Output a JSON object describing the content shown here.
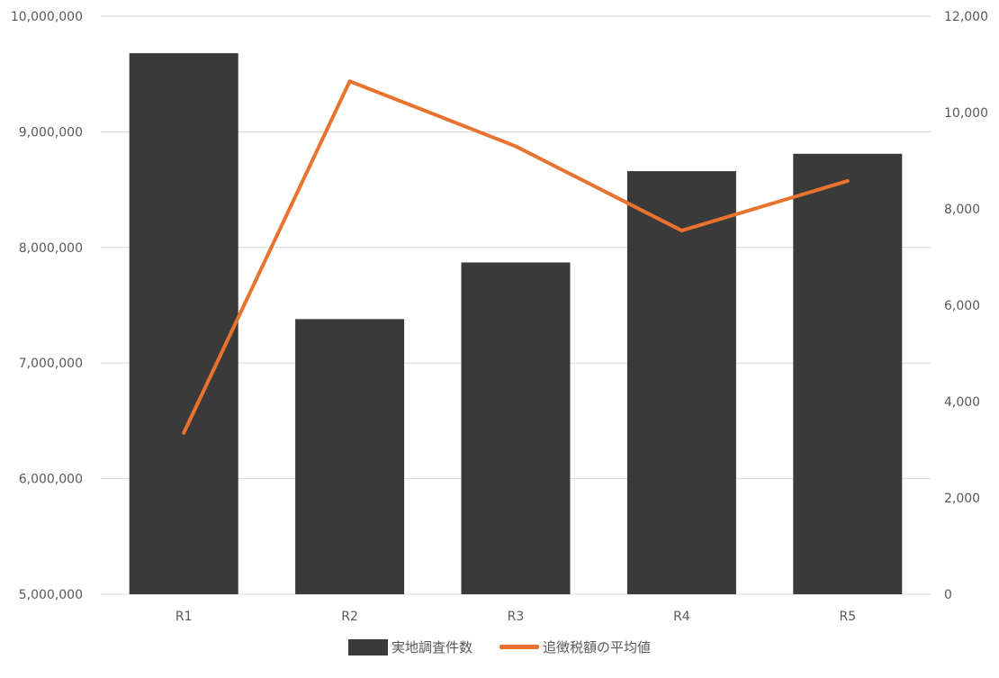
{
  "chart_data": {
    "type": "bar+line",
    "categories": [
      "R1",
      "R2",
      "R3",
      "R4",
      "R5"
    ],
    "series": [
      {
        "name": "実地調査件数",
        "type": "bar",
        "axis": "left",
        "color": "#3a3a3a",
        "values": [
          9680000,
          7380000,
          7870000,
          8660000,
          8810000
        ]
      },
      {
        "name": "追徴税額の平均値",
        "type": "line",
        "axis": "right",
        "color": "#e8722e",
        "values": [
          3350,
          10650,
          9300,
          7550,
          8580
        ]
      }
    ],
    "y_left": {
      "lim": [
        5000000,
        10000000
      ],
      "ticks": [
        "5,000,000",
        "6,000,000",
        "7,000,000",
        "8,000,000",
        "9,000,000",
        "10,000,000"
      ],
      "tick_values": [
        5000000,
        6000000,
        7000000,
        8000000,
        9000000,
        10000000
      ]
    },
    "y_right": {
      "lim": [
        0,
        12000
      ],
      "ticks": [
        "0",
        "2,000",
        "4,000",
        "6,000",
        "8,000",
        "10,000",
        "12,000"
      ],
      "tick_values": [
        0,
        2000,
        4000,
        6000,
        8000,
        10000,
        12000
      ]
    },
    "grid": true,
    "legend_position": "bottom"
  }
}
